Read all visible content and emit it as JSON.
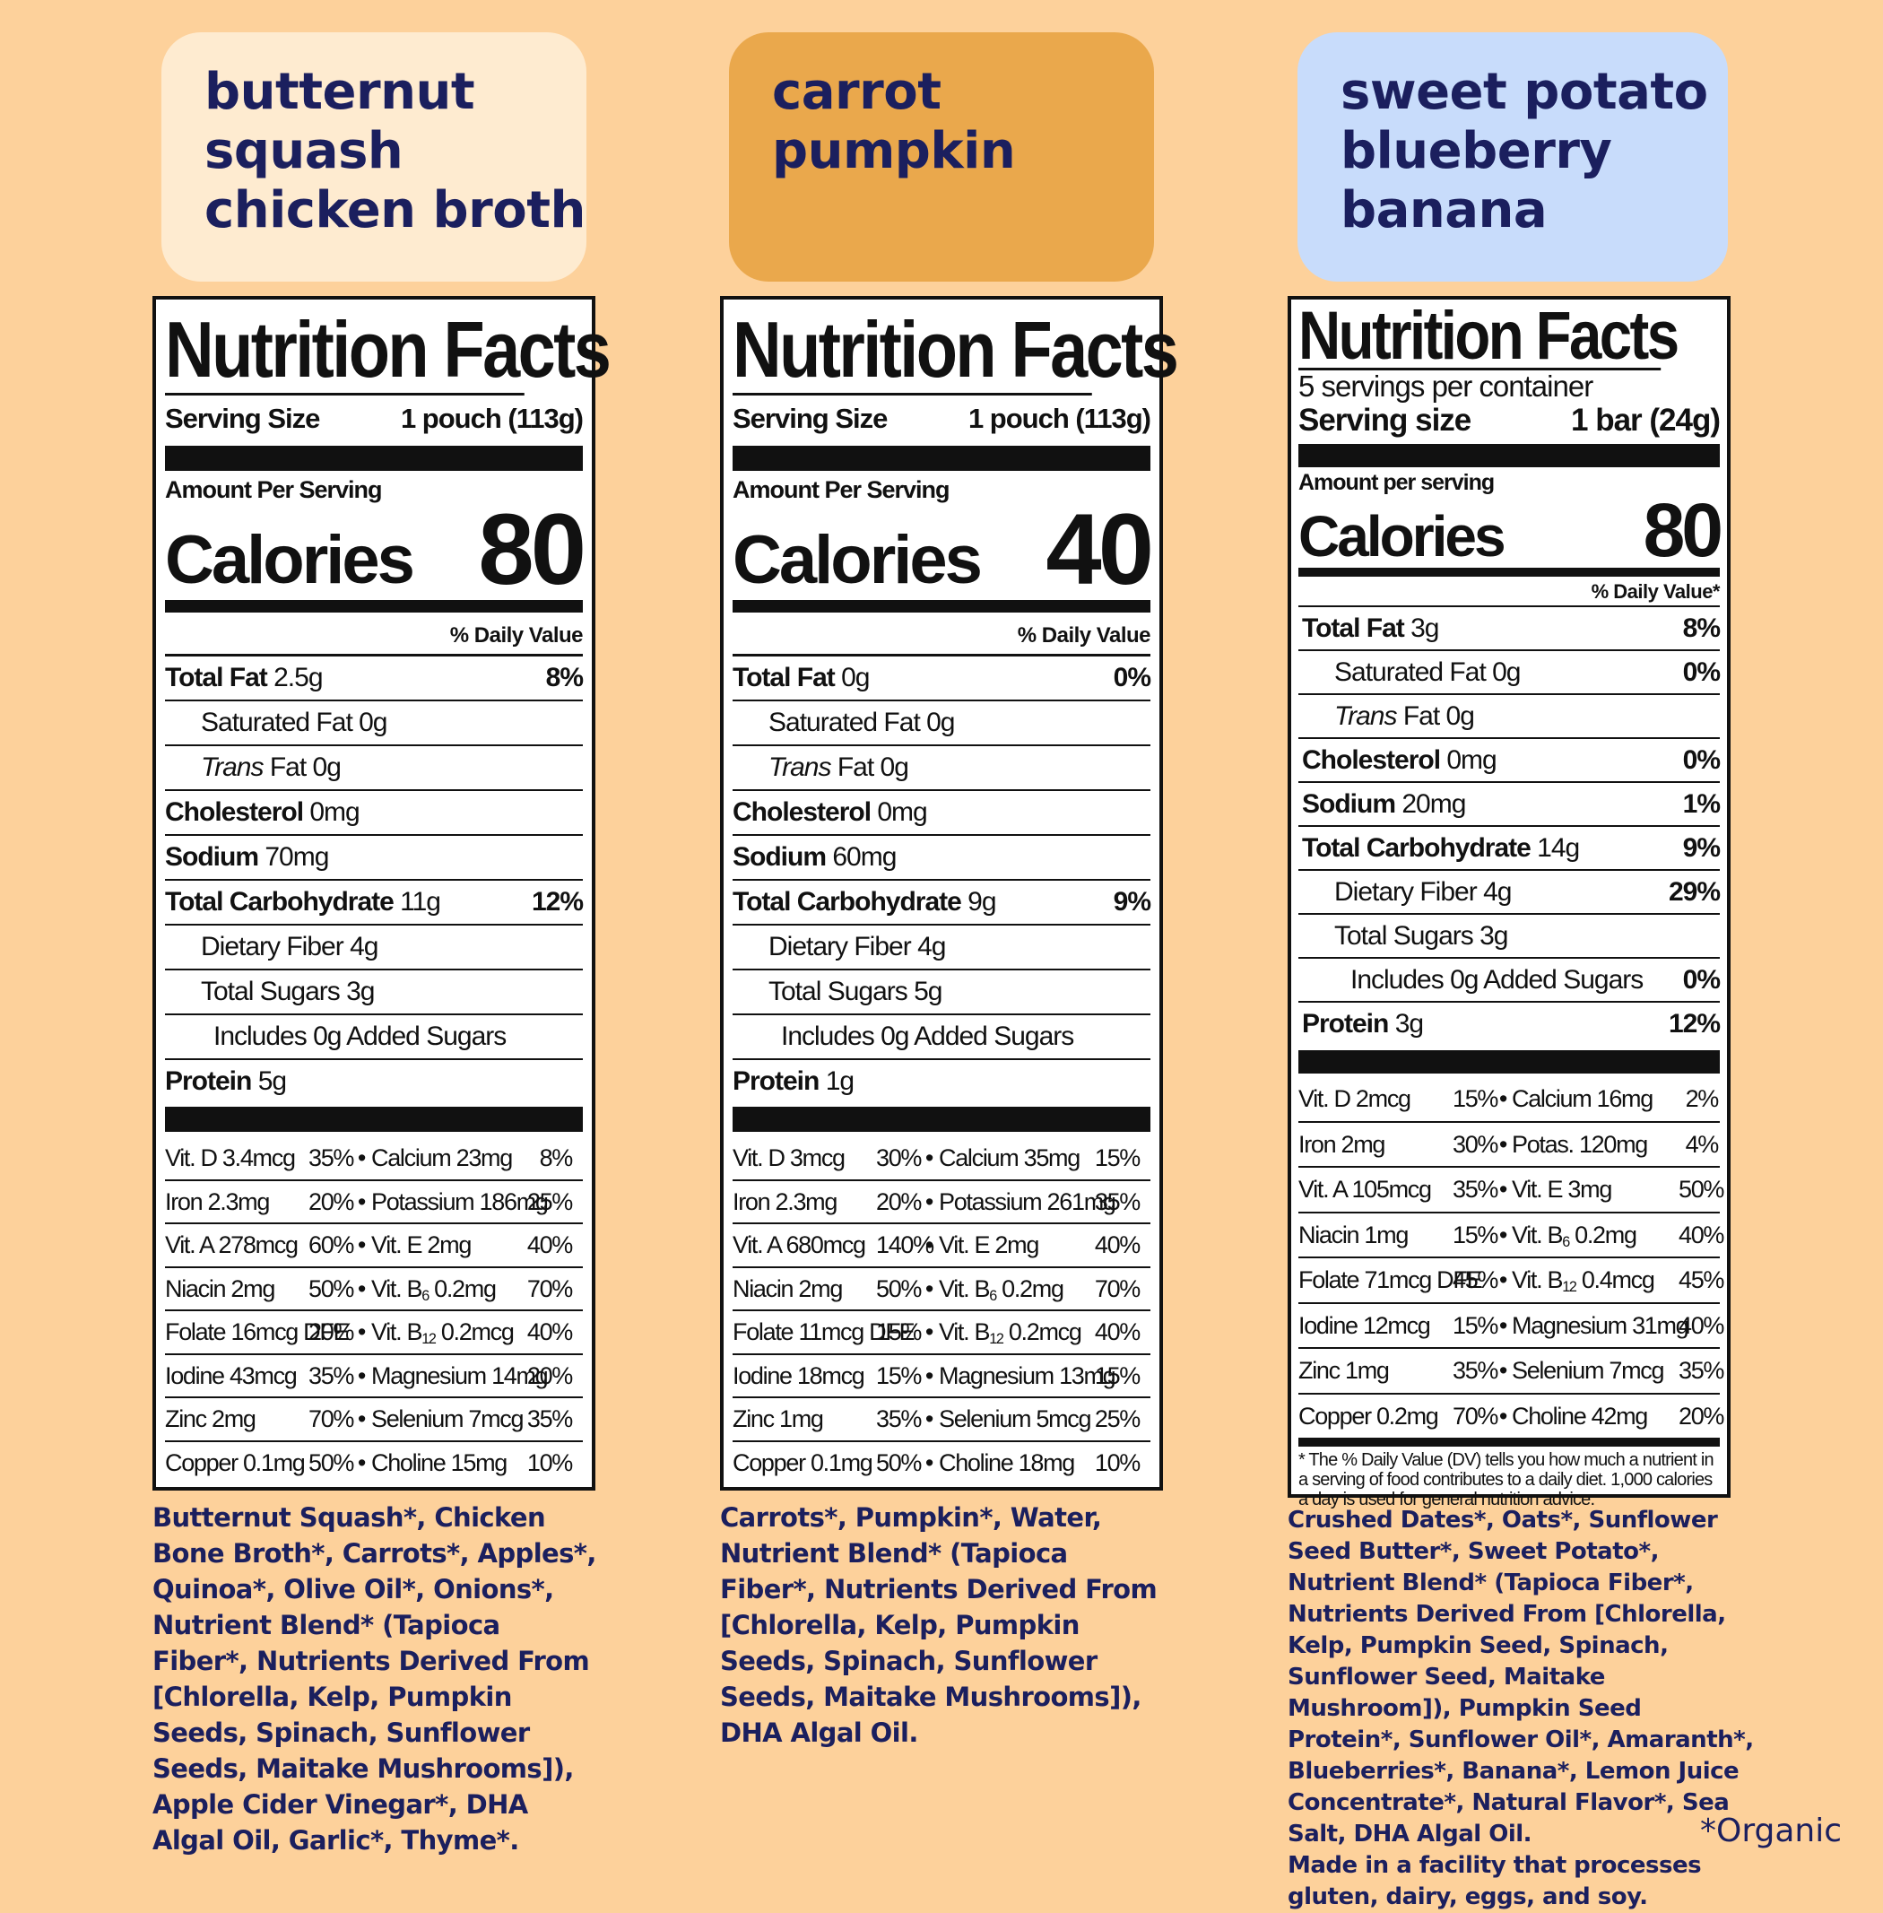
{
  "products": [
    {
      "title_lines": [
        "butternut",
        "squash",
        "chicken broth"
      ],
      "title_bg": "#feebd0",
      "label": {
        "heading": "Nutrition Facts",
        "serving_label": "Serving Size",
        "serving_value": "1 pouch (113g)",
        "amount_label": "Amount Per Serving",
        "calories_label": "Calories",
        "calories": "80",
        "dv_header": "% Daily Value",
        "rows": [
          {
            "name": "Total Fat",
            "amount": "2.5g",
            "dv": "8%"
          },
          {
            "name": "Saturated Fat",
            "amount": "0g",
            "dv": ""
          },
          {
            "name": "Trans",
            "name2": "Fat",
            "amount": "0g",
            "dv": ""
          },
          {
            "name": "Cholesterol",
            "amount": "0mg",
            "dv": ""
          },
          {
            "name": "Sodium",
            "amount": "70mg",
            "dv": ""
          },
          {
            "name": "Total Carbohydrate",
            "amount": "11g",
            "dv": "12%"
          },
          {
            "name": "Dietary Fiber",
            "amount": "4g",
            "dv": ""
          },
          {
            "name": "Total Sugars",
            "amount": "3g",
            "dv": ""
          },
          {
            "name": "Includes 0g Added Sugars",
            "amount": "",
            "dv": ""
          },
          {
            "name": "Protein",
            "amount": "5g",
            "dv": ""
          }
        ],
        "vitamins": [
          [
            "Vit. D 3.4mcg",
            "35%",
            "Calcium 23mg",
            "8%"
          ],
          [
            "Iron 2.3mg",
            "20%",
            "Potassium 186mg",
            "25%"
          ],
          [
            "Vit. A 278mcg",
            "60%",
            "Vit. E 2mg",
            "40%"
          ],
          [
            "Niacin 2mg",
            "50%",
            "Vit. B",
            "6",
            "0.2mg",
            "70%"
          ],
          [
            "Folate 16mcg DFE",
            "20%",
            "Vit. B",
            "12",
            "0.2mcg",
            "40%"
          ],
          [
            "Iodine 43mcg",
            "35%",
            "Magnesium 14mg",
            "20%"
          ],
          [
            "Zinc 2mg",
            "70%",
            "Selenium 7mcg",
            "35%"
          ],
          [
            "Copper 0.1mg",
            "50%",
            "Choline 15mg",
            "10%"
          ]
        ]
      },
      "ingredients": "Butternut Squash*, Chicken Bone Broth*, Carrots*, Apples*, Quinoa*, Olive Oil*, Onions*, Nutrient Blend* (Tapioca Fiber*, Nutrients Derived From [Chlorella, Kelp, Pumpkin Seeds, Spinach, Sunflower Seeds, Maitake Mushrooms]), Apple Cider Vinegar*, DHA Algal Oil, Garlic*, Thyme*."
    },
    {
      "title_lines": [
        "carrot",
        "pumpkin"
      ],
      "title_bg": "#eaa84c",
      "label": {
        "heading": "Nutrition Facts",
        "serving_label": "Serving Size",
        "serving_value": "1 pouch (113g)",
        "amount_label": "Amount Per Serving",
        "calories_label": "Calories",
        "calories": "40",
        "dv_header": "% Daily Value",
        "rows": [
          {
            "name": "Total Fat",
            "amount": "0g",
            "dv": "0%"
          },
          {
            "name": "Saturated Fat",
            "amount": "0g",
            "dv": ""
          },
          {
            "name": "Trans",
            "name2": "Fat",
            "amount": "0g",
            "dv": ""
          },
          {
            "name": "Cholesterol",
            "amount": "0mg",
            "dv": ""
          },
          {
            "name": "Sodium",
            "amount": "60mg",
            "dv": ""
          },
          {
            "name": "Total Carbohydrate",
            "amount": "9g",
            "dv": "9%"
          },
          {
            "name": "Dietary Fiber",
            "amount": "4g",
            "dv": ""
          },
          {
            "name": "Total Sugars",
            "amount": "5g",
            "dv": ""
          },
          {
            "name": "Includes 0g Added Sugars",
            "amount": "",
            "dv": ""
          },
          {
            "name": "Protein",
            "amount": "1g",
            "dv": ""
          }
        ],
        "vitamins": [
          [
            "Vit. D 3mcg",
            "30%",
            "Calcium 35mg",
            "15%"
          ],
          [
            "Iron 2.3mg",
            "20%",
            "Potassium 261mg",
            "35%"
          ],
          [
            "Vit. A 680mcg",
            "140%",
            "Vit. E 2mg",
            "40%"
          ],
          [
            "Niacin 2mg",
            "50%",
            "Vit. B",
            "6",
            "0.2mg",
            "70%"
          ],
          [
            "Folate 11mcg DFE",
            "15%",
            "Vit. B",
            "12",
            "0.2mcg",
            "40%"
          ],
          [
            "Iodine 18mcg",
            "15%",
            "Magnesium 13mg",
            "15%"
          ],
          [
            "Zinc 1mg",
            "35%",
            "Selenium 5mcg",
            "25%"
          ],
          [
            "Copper 0.1mg",
            "50%",
            "Choline 18mg",
            "10%"
          ]
        ]
      },
      "ingredients": "Carrots*, Pumpkin*, Water, Nutrient Blend* (Tapioca Fiber*, Nutrients Derived From [Chlorella, Kelp, Pumpkin Seeds, Spinach, Sunflower Seeds, Maitake Mushrooms]), DHA Algal Oil."
    },
    {
      "title_lines": [
        "sweet potato",
        "blueberry",
        "banana"
      ],
      "title_bg": "#c8dcfb",
      "label": {
        "heading": "Nutrition Facts",
        "servings": "5 servings per container",
        "serving_label": "Serving size",
        "serving_value": "1 bar (24g)",
        "amount_label": "Amount per serving",
        "calories_label": "Calories",
        "calories": "80",
        "dv_header": "% Daily Value*",
        "rows": [
          {
            "name": "Total Fat",
            "amount": "3g",
            "dv": "8%"
          },
          {
            "name": "Saturated Fat",
            "amount": "0g",
            "dv": "0%"
          },
          {
            "name": "Trans",
            "name2": "Fat",
            "amount": "0g",
            "dv": ""
          },
          {
            "name": "Cholesterol",
            "amount": "0mg",
            "dv": "0%"
          },
          {
            "name": "Sodium",
            "amount": "20mg",
            "dv": "1%"
          },
          {
            "name": "Total Carbohydrate",
            "amount": "14g",
            "dv": "9%"
          },
          {
            "name": "Dietary Fiber",
            "amount": "4g",
            "dv": "29%"
          },
          {
            "name": "Total Sugars",
            "amount": "3g",
            "dv": ""
          },
          {
            "name": "Includes 0g Added Sugars",
            "amount": "",
            "dv": "0%"
          },
          {
            "name": "Protein",
            "amount": "3g",
            "dv": "12%"
          }
        ],
        "vitamins": [
          [
            "Vit. D 2mcg",
            "15%",
            "Calcium 16mg",
            "2%"
          ],
          [
            "Iron 2mg",
            "30%",
            "Potas. 120mg",
            "4%"
          ],
          [
            "Vit. A 105mcg",
            "35%",
            "Vit. E 3mg",
            "50%"
          ],
          [
            "Niacin 1mg",
            "15%",
            "Vit. B",
            "6",
            "0.2mg",
            "40%"
          ],
          [
            "Folate 71mcg DFE",
            "45%",
            "Vit. B",
            "12",
            "0.4mcg",
            "45%"
          ],
          [
            "Iodine 12mcg",
            "15%",
            "Magnesium 31mg",
            "40%"
          ],
          [
            "Zinc 1mg",
            "35%",
            "Selenium 7mcg",
            "35%"
          ],
          [
            "Copper 0.2mg",
            "70%",
            "Choline 42mg",
            "20%"
          ]
        ],
        "footnote": "* The % Daily Value (DV) tells you how much a nutrient in a serving of food contributes to a daily diet. 1,000 calories a day is used for general nutrition advice."
      },
      "ingredients": "Crushed Dates*, Oats*, Sunflower Seed Butter*, Sweet Potato*, Nutrient Blend* (Tapioca Fiber*, Nutrients Derived From [Chlorella, Kelp, Pumpkin Seed, Spinach, Sunflower Seed, Maitake Mushroom]), Pumpkin Seed Protein*, Sunflower Oil*, Amaranth*, Blueberries*, Banana*, Lemon Juice Concentrate*, Natural Flavor*, Sea Salt, DHA Algal Oil.",
      "allergen_warning": "Made in a facility that processes gluten, dairy, eggs, and soy."
    }
  ],
  "organic_note": "*Organic",
  "colors": {
    "background": "#fdd19b",
    "navy_text": "#1b1f5e"
  }
}
